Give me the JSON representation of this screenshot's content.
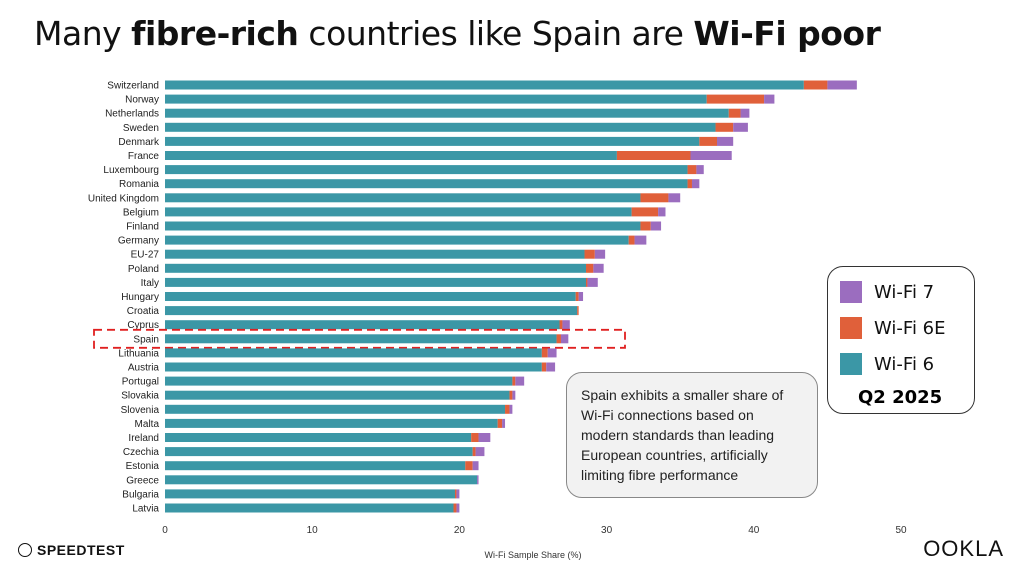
{
  "title": {
    "pre": "Many ",
    "b1": "fibre-rich",
    "mid": " countries like Spain are ",
    "b2": "Wi-Fi poor"
  },
  "colors": {
    "wifi6": "#3b97a6",
    "wifi6e": "#e0603a",
    "wifi7": "#9b6dbf",
    "highlight": "#e02020"
  },
  "legend": {
    "items": [
      "Wi-Fi 7",
      "Wi-Fi 6E",
      "Wi-Fi 6"
    ],
    "period": "Q2 2025"
  },
  "note": "Spain exhibits a smaller share of Wi-Fi connections based on modern standards than leading European countries, artificially limiting fibre performance",
  "branding": {
    "left": "SPEEDTEST",
    "right": "OOKLA"
  },
  "chart_data": {
    "type": "bar",
    "orientation": "horizontal",
    "stacked": true,
    "xlabel": "Wi-Fi Sample Share (%)",
    "xlim": [
      0,
      50
    ],
    "xticks": [
      0,
      10,
      20,
      30,
      40,
      50
    ],
    "highlight": "Spain",
    "categories": [
      "Switzerland",
      "Norway",
      "Netherlands",
      "Sweden",
      "Denmark",
      "France",
      "Luxembourg",
      "Romania",
      "United Kingdom",
      "Belgium",
      "Finland",
      "Germany",
      "EU-27",
      "Poland",
      "Italy",
      "Hungary",
      "Croatia",
      "Cyprus",
      "Spain",
      "Lithuania",
      "Austria",
      "Portugal",
      "Slovakia",
      "Slovenia",
      "Malta",
      "Ireland",
      "Czechia",
      "Estonia",
      "Greece",
      "Bulgaria",
      "Latvia"
    ],
    "series": [
      {
        "name": "Wi-Fi 6",
        "values": [
          43.4,
          36.8,
          38.3,
          37.4,
          36.3,
          30.7,
          35.5,
          35.5,
          32.3,
          31.7,
          32.3,
          31.5,
          28.5,
          28.6,
          28.6,
          27.9,
          28.0,
          26.8,
          26.6,
          25.6,
          25.6,
          23.6,
          23.4,
          23.1,
          22.6,
          20.8,
          20.9,
          20.4,
          21.2,
          19.7,
          19.6
        ]
      },
      {
        "name": "Wi-Fi 6E",
        "values": [
          1.6,
          3.9,
          0.8,
          1.2,
          1.2,
          5.0,
          0.6,
          0.3,
          1.9,
          1.8,
          0.7,
          0.4,
          0.7,
          0.5,
          0.1,
          0.2,
          0.1,
          0.2,
          0.3,
          0.4,
          0.3,
          0.2,
          0.2,
          0.3,
          0.3,
          0.5,
          0.2,
          0.5,
          0.0,
          0.1,
          0.2
        ]
      },
      {
        "name": "Wi-Fi 7",
        "values": [
          2.0,
          0.7,
          0.6,
          1.0,
          1.1,
          2.8,
          0.5,
          0.5,
          0.8,
          0.5,
          0.7,
          0.8,
          0.7,
          0.7,
          0.7,
          0.3,
          0.0,
          0.5,
          0.5,
          0.6,
          0.6,
          0.6,
          0.2,
          0.2,
          0.2,
          0.8,
          0.6,
          0.4,
          0.1,
          0.2,
          0.2
        ]
      }
    ]
  }
}
